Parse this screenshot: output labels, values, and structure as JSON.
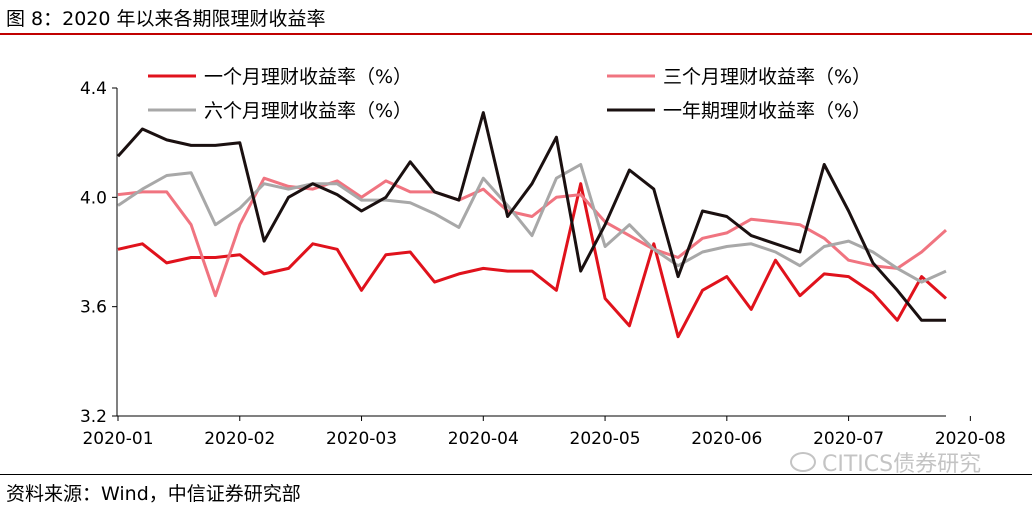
{
  "header": {
    "title": "图 8：2020 年以来各期限理财收益率"
  },
  "footer": {
    "source": "资料来源：Wind，中信证券研究部",
    "watermark": "CITICS债券研究"
  },
  "chart_data": {
    "type": "line",
    "x_ticks": [
      "2020-01",
      "2020-02",
      "2020-03",
      "2020-04",
      "2020-05",
      "2020-06",
      "2020-07",
      "2020-08"
    ],
    "x_tick_index": [
      0,
      5,
      10,
      15,
      20,
      25,
      30,
      35
    ],
    "yticks": [
      "3.2",
      "3.6",
      "4.0",
      "4.4"
    ],
    "ylim": [
      3.2,
      4.4
    ],
    "legend_position": "top",
    "series": [
      {
        "name": "一个月理财收益率（%）",
        "color": "#e0121c",
        "values": [
          3.81,
          3.83,
          3.76,
          3.78,
          3.78,
          3.79,
          3.72,
          3.74,
          3.83,
          3.81,
          3.66,
          3.79,
          3.8,
          3.69,
          3.72,
          3.74,
          3.73,
          3.73,
          3.66,
          4.05,
          3.63,
          3.53,
          3.83,
          3.49,
          3.66,
          3.71,
          3.59,
          3.77,
          3.64,
          3.72,
          3.71,
          3.65,
          3.55,
          3.71,
          3.63
        ]
      },
      {
        "name": "三个月理财收益率（%）",
        "color": "#f07480",
        "values": [
          4.01,
          4.02,
          4.02,
          3.9,
          3.64,
          3.9,
          4.07,
          4.04,
          4.03,
          4.06,
          4.0,
          4.06,
          4.02,
          4.02,
          3.99,
          4.03,
          3.95,
          3.93,
          4.0,
          4.01,
          3.91,
          3.86,
          3.81,
          3.78,
          3.85,
          3.87,
          3.92,
          3.91,
          3.9,
          3.85,
          3.77,
          3.75,
          3.74,
          3.8,
          3.88
        ]
      },
      {
        "name": "六个月理财收益率（%）",
        "color": "#a8a8a8",
        "values": [
          3.97,
          4.03,
          4.08,
          4.09,
          3.9,
          3.96,
          4.05,
          4.03,
          4.05,
          4.05,
          3.99,
          3.99,
          3.98,
          3.94,
          3.89,
          4.07,
          3.97,
          3.86,
          4.07,
          4.12,
          3.82,
          3.9,
          3.81,
          3.75,
          3.8,
          3.82,
          3.83,
          3.8,
          3.75,
          3.82,
          3.84,
          3.8,
          3.74,
          3.69,
          3.73
        ]
      },
      {
        "name": "一年期理财收益率（%）",
        "color": "#1a1010",
        "values": [
          4.15,
          4.25,
          4.21,
          4.19,
          4.19,
          4.2,
          3.84,
          4.0,
          4.05,
          4.01,
          3.95,
          4.0,
          4.13,
          4.02,
          3.99,
          4.31,
          3.93,
          4.05,
          4.22,
          3.73,
          3.9,
          4.1,
          4.03,
          3.71,
          3.95,
          3.93,
          3.86,
          3.83,
          3.8,
          4.12,
          3.95,
          3.76,
          3.66,
          3.55,
          3.55
        ]
      }
    ]
  }
}
